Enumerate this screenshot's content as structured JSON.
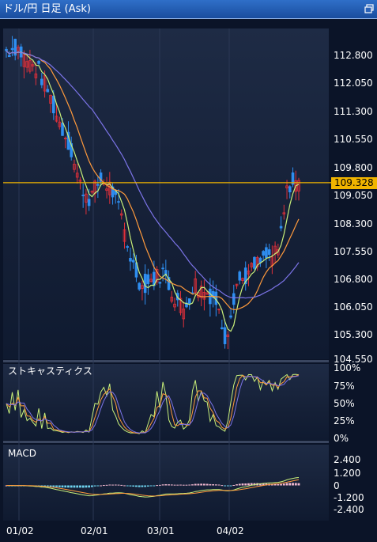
{
  "window": {
    "title": "ドル/円 日足 (Ask)",
    "restore_icon": "restore-window-icon"
  },
  "price": {
    "current": "109.328",
    "axis_ticks": [
      "112.800",
      "112.050",
      "111.300",
      "110.550",
      "109.800",
      "109.050",
      "108.300",
      "107.550",
      "106.800",
      "106.050",
      "105.300",
      "104.550"
    ],
    "colors": {
      "up": "#e0303a",
      "down": "#2e8ef0",
      "ma_short": "#c9f07a",
      "ma_mid": "#ff9a3c",
      "ma_long": "#7c74e8",
      "price_line": "#f0b400"
    }
  },
  "stochastics": {
    "title": "ストキャスティクス",
    "ticks": [
      "100%",
      "75%",
      "50%",
      "25%",
      "0%"
    ]
  },
  "macd": {
    "title": "MACD",
    "ticks": [
      "2.400",
      "1.200",
      "0",
      "-1.200",
      "-2.400"
    ]
  },
  "xaxis": {
    "labels": [
      "01/02",
      "02/01",
      "03/01",
      "04/02"
    ]
  },
  "chart_data": {
    "type": "candlestick",
    "title": "ドル/円 日足 (Ask)",
    "ylim": [
      104.55,
      113.5
    ],
    "current_price": 109.328,
    "x": [
      "01/02",
      "02/01",
      "03/01",
      "04/02"
    ],
    "close_path_approx": [
      112.9,
      113.0,
      112.6,
      112.4,
      111.8,
      111.0,
      110.4,
      109.3,
      108.9,
      109.4,
      109.2,
      108.4,
      107.2,
      106.5,
      106.7,
      106.9,
      106.3,
      105.9,
      106.6,
      106.4,
      106.2,
      105.1,
      106.6,
      106.8,
      107.1,
      107.3,
      107.4,
      109.3,
      109.3
    ],
    "stochastic_range": [
      0,
      100
    ],
    "macd_range": [
      -2.4,
      2.4
    ]
  }
}
